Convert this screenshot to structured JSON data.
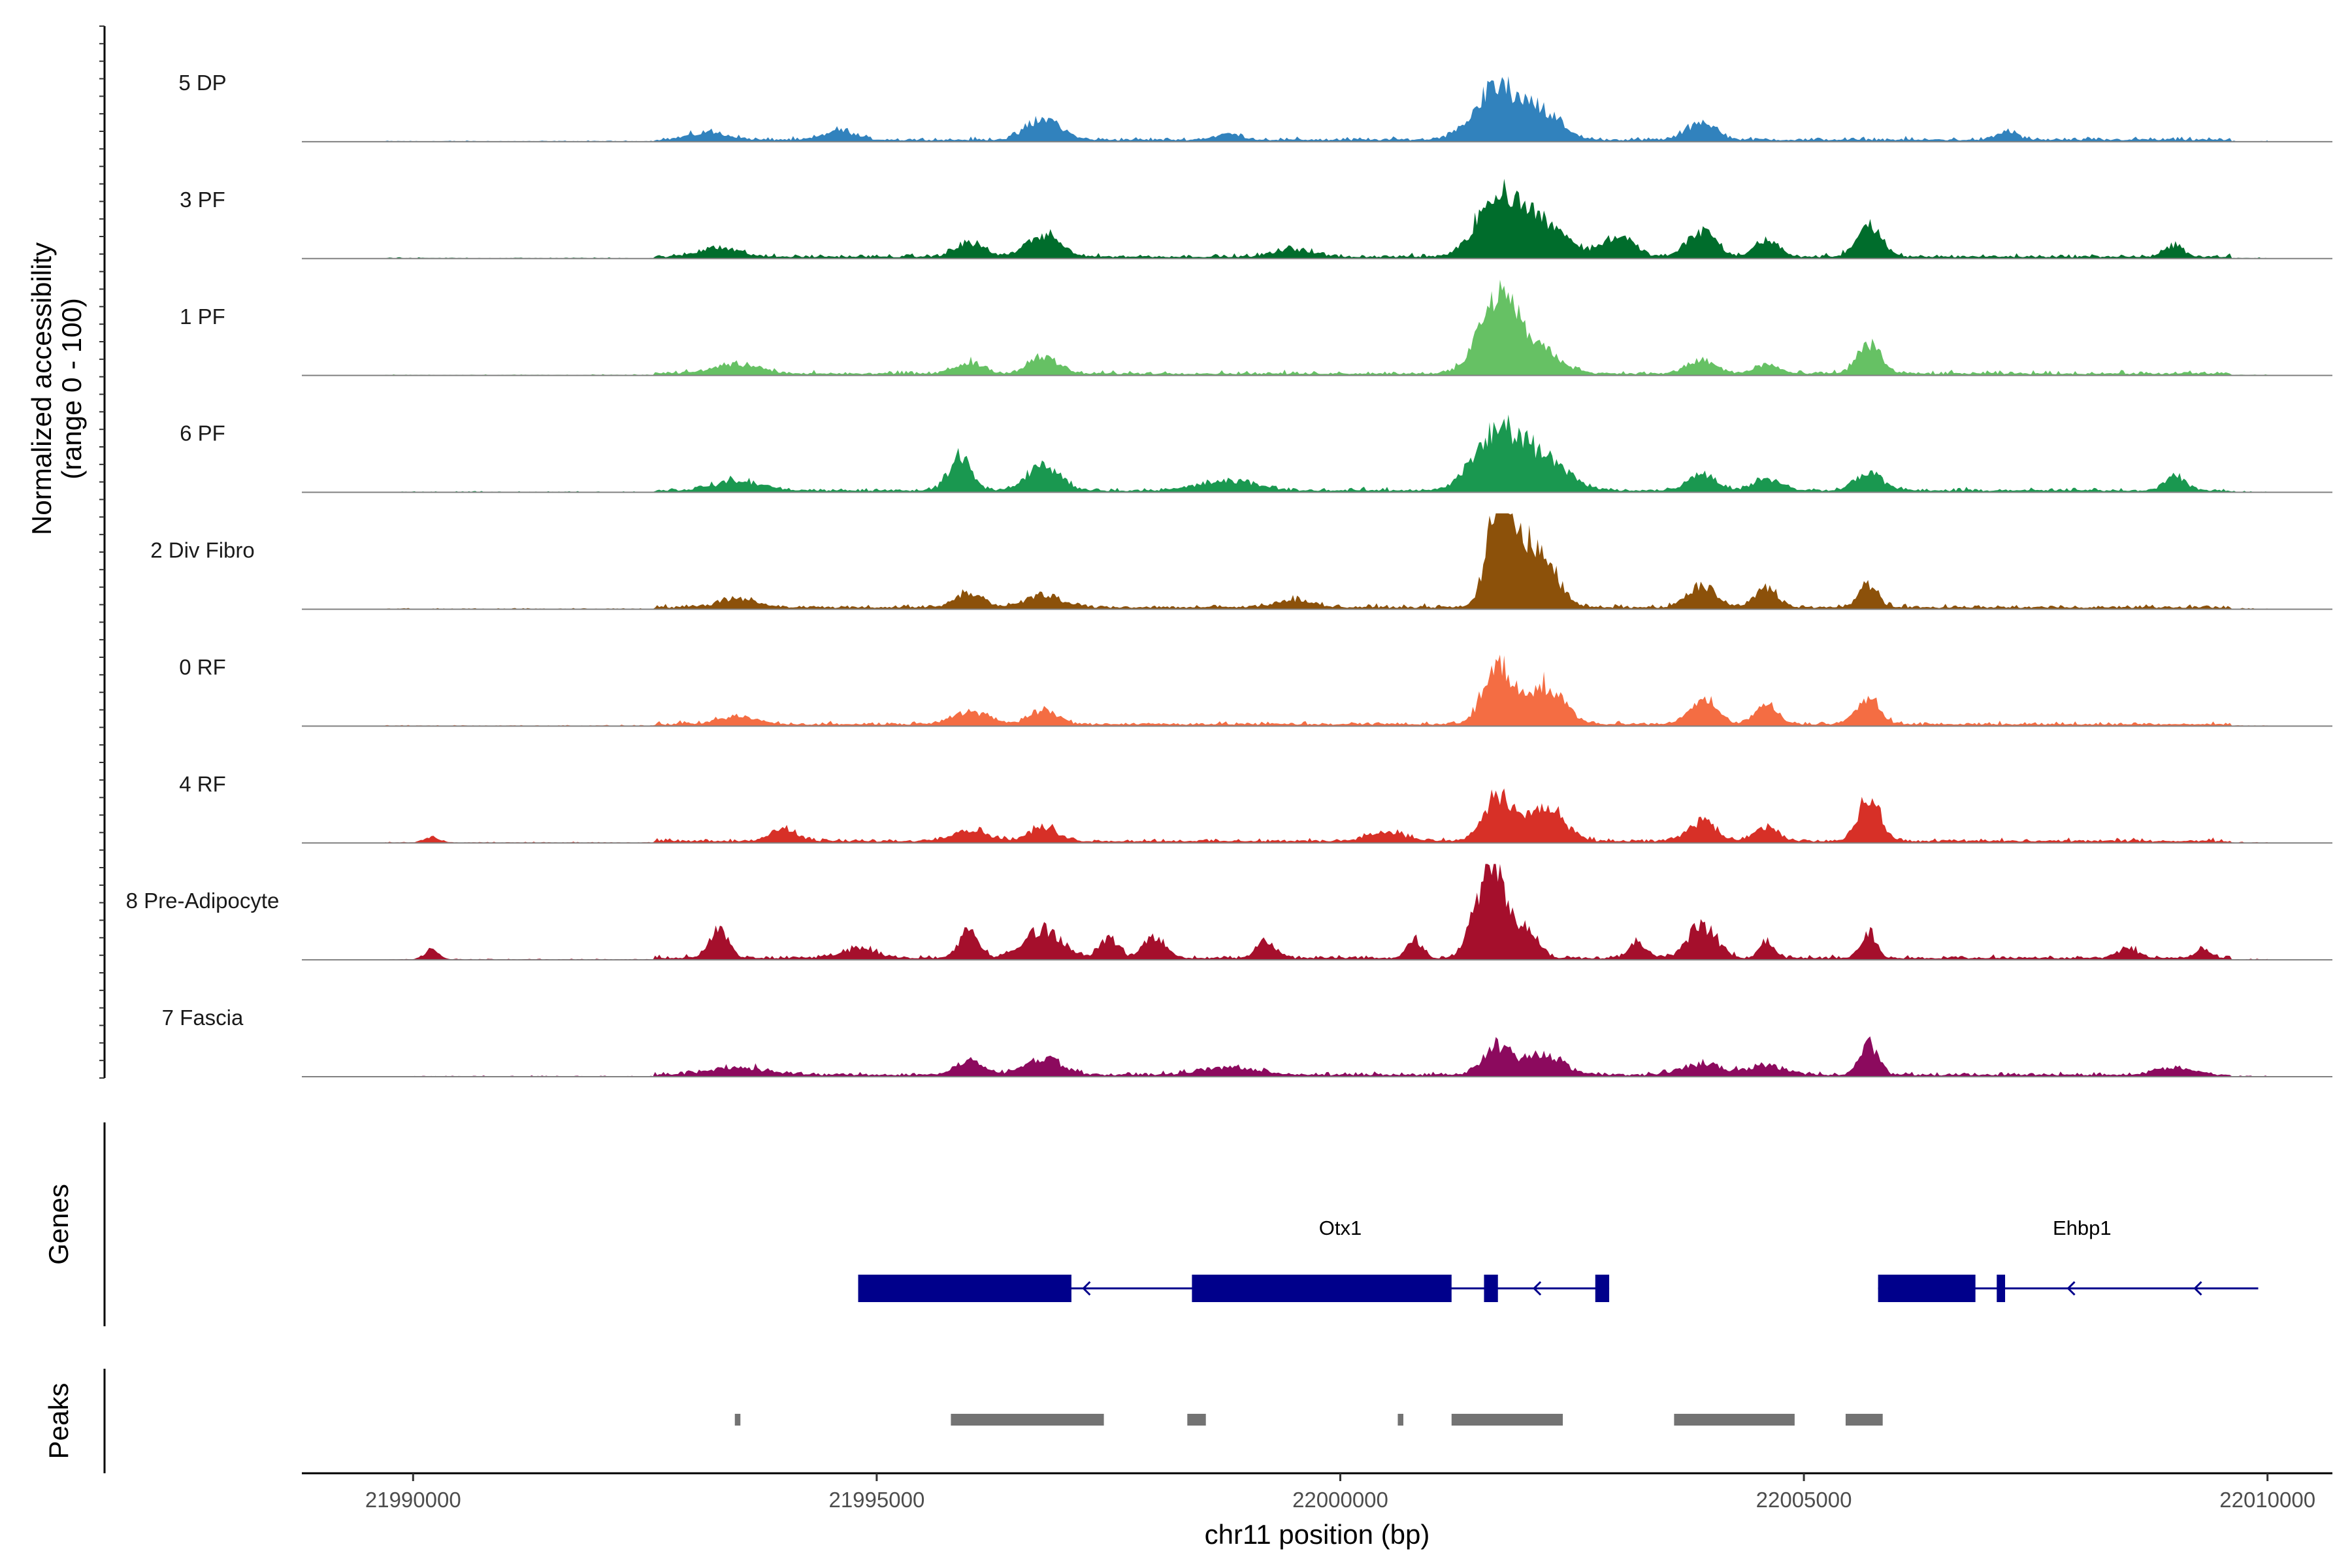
{
  "chart_data": {
    "type": "area",
    "description": "Genome browser coverage plot",
    "coverage": {
      "ylabel_line1": "Normalized accessibility",
      "ylabel_line2": "(range 0 - 100)",
      "ylim": [
        0,
        100
      ],
      "tracks": [
        {
          "name": "5 DP",
          "color": "#3182bd",
          "peaks": [
            [
              21996800,
              22,
              180
            ],
            [
              22001700,
              55,
              250
            ],
            [
              22002200,
              25,
              200
            ],
            [
              22003900,
              20,
              150
            ],
            [
              21994600,
              10,
              150
            ],
            [
              21993200,
              8,
              200
            ],
            [
              22007200,
              10,
              100
            ],
            [
              21998800,
              6,
              150
            ]
          ]
        },
        {
          "name": "3 PF",
          "color": "#006d2c",
          "peaks": [
            [
              21996800,
              22,
              180
            ],
            [
              22001700,
              65,
              220
            ],
            [
              22002200,
              35,
              250
            ],
            [
              22003000,
              22,
              160
            ],
            [
              22003900,
              28,
              150
            ],
            [
              22004600,
              18,
              120
            ],
            [
              22005700,
              32,
              130
            ],
            [
              21993300,
              10,
              200
            ],
            [
              21996000,
              15,
              150
            ],
            [
              22009000,
              12,
              100
            ],
            [
              21999500,
              8,
              200
            ]
          ]
        },
        {
          "name": "1 PF",
          "color": "#66c164",
          "peaks": [
            [
              21996800,
              18,
              150
            ],
            [
              22001700,
              75,
              200
            ],
            [
              22002100,
              25,
              250
            ],
            [
              22003900,
              14,
              150
            ],
            [
              22005700,
              32,
              120
            ],
            [
              21993500,
              10,
              250
            ],
            [
              21996000,
              12,
              150
            ],
            [
              22004600,
              10,
              120
            ]
          ]
        },
        {
          "name": "6 PF",
          "color": "#1a9850",
          "peaks": [
            [
              21995900,
              35,
              120
            ],
            [
              21996800,
              25,
              180
            ],
            [
              22001700,
              60,
              250
            ],
            [
              22002200,
              30,
              250
            ],
            [
              22003900,
              18,
              150
            ],
            [
              22005700,
              18,
              150
            ],
            [
              22009000,
              18,
              100
            ],
            [
              21993500,
              10,
              250
            ],
            [
              21998800,
              10,
              300
            ],
            [
              22004600,
              12,
              150
            ]
          ]
        },
        {
          "name": "2 Div Fibro",
          "color": "#8c510a",
          "peaks": [
            [
              22001700,
              100,
              120
            ],
            [
              22001900,
              60,
              150
            ],
            [
              22002200,
              45,
              160
            ],
            [
              22003900,
              22,
              150
            ],
            [
              22004600,
              20,
              120
            ],
            [
              22005700,
              25,
              100
            ],
            [
              21996000,
              15,
              150
            ],
            [
              21996800,
              12,
              200
            ],
            [
              21993500,
              10,
              200
            ],
            [
              21999500,
              8,
              200
            ]
          ]
        },
        {
          "name": "0 RF",
          "color": "#f46d43",
          "peaks": [
            [
              22001700,
              65,
              150
            ],
            [
              22002200,
              40,
              200
            ],
            [
              22003900,
              25,
              150
            ],
            [
              22004600,
              20,
              120
            ],
            [
              22005700,
              30,
              120
            ],
            [
              21996000,
              12,
              200
            ],
            [
              21996800,
              15,
              150
            ],
            [
              21993500,
              8,
              200
            ]
          ]
        },
        {
          "name": "4 RF",
          "color": "#d73027",
          "peaks": [
            [
              22001700,
              48,
              150
            ],
            [
              22002200,
              35,
              200
            ],
            [
              22003900,
              20,
              150
            ],
            [
              22004600,
              15,
              120
            ],
            [
              22005700,
              45,
              120
            ],
            [
              21994000,
              12,
              150
            ],
            [
              21996000,
              12,
              200
            ],
            [
              21996800,
              15,
              150
            ],
            [
              22000500,
              10,
              200
            ],
            [
              21990200,
              6,
              80
            ]
          ]
        },
        {
          "name": "8 Pre-Adipocyte",
          "color": "#a50f2c",
          "peaks": [
            [
              22001700,
              90,
              100
            ],
            [
              22001500,
              55,
              120
            ],
            [
              22002000,
              35,
              120
            ],
            [
              22003900,
              35,
              150
            ],
            [
              21996800,
              30,
              200
            ],
            [
              21996000,
              30,
              100
            ],
            [
              21993300,
              30,
              100
            ],
            [
              22005700,
              28,
              80
            ],
            [
              22000800,
              20,
              80
            ],
            [
              21997500,
              20,
              100
            ],
            [
              21998000,
              22,
              120
            ],
            [
              21999200,
              18,
              100
            ],
            [
              22004600,
              18,
              80
            ],
            [
              22003200,
              15,
              100
            ],
            [
              21990200,
              10,
              80
            ],
            [
              22008500,
              12,
              100
            ],
            [
              22009300,
              10,
              80
            ],
            [
              21994800,
              10,
              200
            ]
          ]
        },
        {
          "name": "7 Fascia",
          "color": "#8c0a5e",
          "peaks": [
            [
              22001700,
              30,
              150
            ],
            [
              22002200,
              22,
              200
            ],
            [
              21996800,
              18,
              200
            ],
            [
              22003900,
              12,
              200
            ],
            [
              22005700,
              32,
              100
            ],
            [
              21996000,
              14,
              150
            ],
            [
              21998800,
              8,
              300
            ],
            [
              21993500,
              8,
              300
            ],
            [
              22009000,
              8,
              200
            ],
            [
              22004600,
              10,
              200
            ]
          ]
        }
      ]
    },
    "genes": {
      "title": "Genes",
      "color": "#00008b",
      "items": [
        {
          "name": "Otx1",
          "start": 21994800,
          "end": 22002900,
          "strand": "-",
          "exons": [
            [
              21994800,
              21997100,
              "thick"
            ],
            [
              21998400,
              22001200,
              "thick"
            ],
            [
              22001550,
              22001700,
              "thick"
            ],
            [
              22002750,
              22002900,
              "thick"
            ]
          ],
          "label_at": 22000000
        },
        {
          "name": "Ehbp1",
          "start": 22005800,
          "end": 22009900,
          "strand": "-",
          "exons": [
            [
              22005800,
              22006850,
              "thick"
            ],
            [
              22007080,
              22007170,
              "thick"
            ]
          ],
          "label_at": 22008000
        }
      ]
    },
    "peaks_track": {
      "title": "Peaks",
      "color": "#737373",
      "regions": [
        [
          21993470,
          21993530
        ],
        [
          21995800,
          21997450
        ],
        [
          21998350,
          21998550
        ],
        [
          22000620,
          22000680
        ],
        [
          22001200,
          22002400
        ],
        [
          22003600,
          22004900
        ],
        [
          22005450,
          22005850
        ]
      ]
    },
    "xaxis": {
      "xlabel": "chr11 position (bp)",
      "xlim": [
        21988800,
        22010700
      ],
      "ticks": [
        21990000,
        21995000,
        22000000,
        22005000,
        22010000
      ],
      "tick_labels": [
        "21990000",
        "21995000",
        "22000000",
        "22005000",
        "22010000"
      ]
    }
  }
}
